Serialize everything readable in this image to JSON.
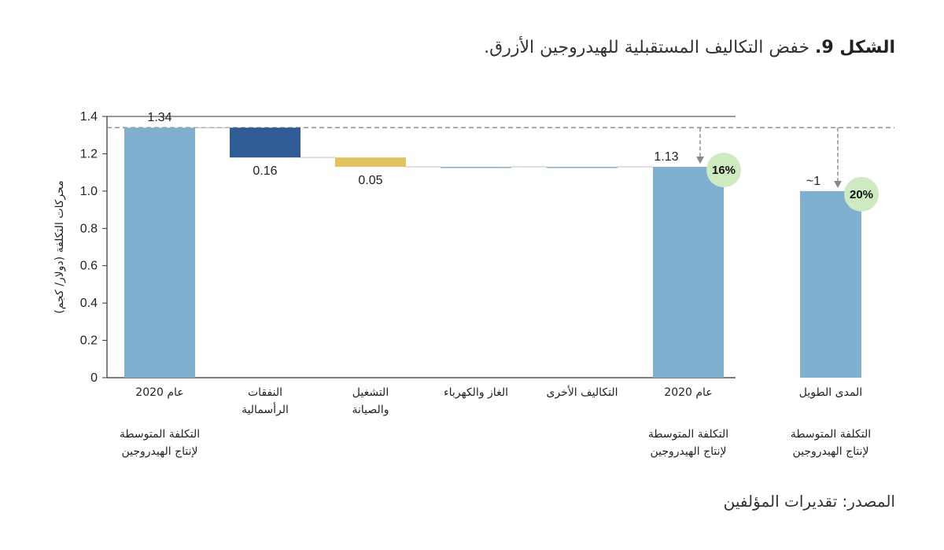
{
  "figure": {
    "label": "الشكل 9.",
    "caption": "خفض التكاليف المستقبلية للهيدروجين الأزرق.",
    "source": "المصدر: تقديرات المؤلفين"
  },
  "colors": {
    "bar_light": "#7fb0cf",
    "bar_dark": "#2f5b97",
    "bar_gold": "#e0c25f",
    "badge": "#cdeac0",
    "dashed": "#888888",
    "axis": "#333333"
  },
  "chart_data": {
    "type": "waterfall",
    "ylabel": "محركات التكلفة (دولار/ كجم)",
    "ylim": [
      0,
      1.4
    ],
    "yticks": [
      "0",
      "0.2",
      "0.4",
      "0.6",
      "0.8",
      "1.0",
      "1.2",
      "1.4"
    ],
    "ytick_values": [
      0,
      0.2,
      0.4,
      0.6,
      0.8,
      1.0,
      1.2,
      1.4
    ],
    "bars": [
      {
        "id": "avg-2020-start",
        "label_lines": [
          "عام 2020"
        ],
        "sub_lines": [
          "التكلفة المتوسطة",
          "لإنتاج الهيدروجين"
        ],
        "kind": "total",
        "value": 1.34,
        "value_label": "1.34",
        "color": "bar_light"
      },
      {
        "id": "capex",
        "label_lines": [
          "النفقات",
          "الرأسمالية"
        ],
        "sub_lines": [],
        "kind": "decrease",
        "value": 0.16,
        "value_label": "0.16",
        "color": "bar_dark"
      },
      {
        "id": "om",
        "label_lines": [
          "التشغيل",
          "والصيانة"
        ],
        "sub_lines": [],
        "kind": "decrease",
        "value": 0.05,
        "value_label": "0.05",
        "color": "bar_gold"
      },
      {
        "id": "gas-power",
        "label_lines": [
          "الغاز والكهرباء"
        ],
        "sub_lines": [],
        "kind": "decrease",
        "value": 0.0,
        "value_label": "",
        "color": "bar_light"
      },
      {
        "id": "other",
        "label_lines": [
          "التكاليف الأخرى"
        ],
        "sub_lines": [],
        "kind": "decrease",
        "value": 0.0,
        "value_label": "",
        "color": "bar_light"
      },
      {
        "id": "avg-2020-end",
        "label_lines": [
          "عام 2020"
        ],
        "sub_lines": [
          "التكلفة المتوسطة",
          "لإنتاج الهيدروجين"
        ],
        "kind": "total",
        "value": 1.13,
        "value_label": "1.13",
        "color": "bar_light",
        "badge": "16%"
      },
      {
        "id": "long-term",
        "label_lines": [
          "المدى الطويل"
        ],
        "sub_lines": [
          "التكلفة المتوسطة",
          "لإنتاج الهيدروجين"
        ],
        "kind": "total",
        "value": 1.0,
        "value_label": "~1",
        "color": "bar_light",
        "badge": "20%"
      }
    ]
  }
}
